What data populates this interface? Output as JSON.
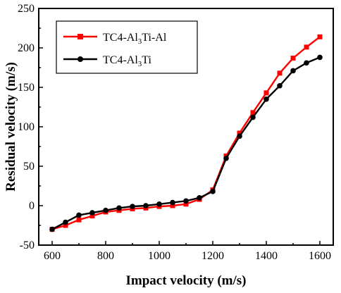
{
  "chart_data": {
    "type": "line",
    "xlabel": "Impact velocity (m/s)",
    "ylabel": "Residual velocity (m/s)",
    "xlim": [
      550,
      1650
    ],
    "ylim": [
      -50,
      250
    ],
    "x_ticks": [
      600,
      800,
      1000,
      1200,
      1400,
      1600
    ],
    "y_ticks": [
      -50,
      0,
      50,
      100,
      150,
      200,
      250
    ],
    "x_tick_labels": [
      "600",
      "800",
      "1000",
      "1200",
      "1400",
      "1600"
    ],
    "y_tick_labels": [
      "-50",
      "0",
      "50",
      "100",
      "150",
      "200",
      "250"
    ],
    "legend_position": "top-left",
    "grid": false,
    "x": [
      600,
      650,
      700,
      750,
      800,
      850,
      900,
      950,
      1000,
      1050,
      1100,
      1150,
      1200,
      1250,
      1300,
      1350,
      1400,
      1450,
      1500,
      1550,
      1600
    ],
    "series": [
      {
        "name": "TC4-Al3Ti-Al",
        "legend_parts": [
          "TC4-Al",
          "3",
          "Ti-Al"
        ],
        "color": "#ff0000",
        "marker": "square",
        "values": [
          -30,
          -25,
          -18,
          -13,
          -8,
          -6,
          -4,
          -3,
          -1,
          0,
          2,
          8,
          20,
          63,
          92,
          118,
          143,
          168,
          187,
          201,
          214
        ]
      },
      {
        "name": "TC4-Al3Ti",
        "legend_parts": [
          "TC4-Al",
          "3",
          "Ti"
        ],
        "color": "#000000",
        "marker": "circle",
        "values": [
          -30,
          -21,
          -12,
          -9,
          -6,
          -3,
          -1,
          0,
          2,
          4,
          6,
          10,
          18,
          60,
          88,
          112,
          135,
          152,
          171,
          181,
          188
        ]
      }
    ]
  }
}
